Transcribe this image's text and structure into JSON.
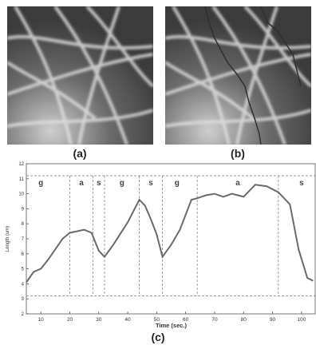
{
  "figure": {
    "label_a": "(a)",
    "label_b": "(b)",
    "label_c": "(c)"
  },
  "colors": {
    "background_image": "#4a4a4a",
    "filament": "#d8d8d8",
    "tracked_line": "#3a3a3a",
    "plot_line": "#6a6a6a",
    "dashed": "#888888"
  },
  "chart_data": {
    "type": "line",
    "title": "",
    "xlabel": "Time (sec.)",
    "ylabel": "Length (um)",
    "xlim": [
      5,
      105
    ],
    "ylim": [
      2,
      12
    ],
    "xticks": [
      10,
      20,
      30,
      40,
      50,
      60,
      70,
      80,
      90,
      100
    ],
    "yticks": [
      2,
      3,
      4,
      5,
      6,
      7,
      8,
      9,
      10,
      11,
      12
    ],
    "grid": false,
    "legend": "none",
    "series": [
      {
        "values": [
          [
            5,
            4.1
          ],
          [
            7.5,
            4.8
          ],
          [
            10,
            5.0
          ],
          [
            12.5,
            5.6
          ],
          [
            15,
            6.3
          ],
          [
            17.5,
            7.0
          ],
          [
            20,
            7.4
          ],
          [
            22.5,
            7.5
          ],
          [
            25,
            7.6
          ],
          [
            27.5,
            7.4
          ],
          [
            30,
            6.2
          ],
          [
            32,
            5.8
          ],
          [
            35,
            6.6
          ],
          [
            40,
            8.1
          ],
          [
            44,
            9.6
          ],
          [
            46,
            9.2
          ],
          [
            48,
            8.3
          ],
          [
            50,
            7.3
          ],
          [
            52,
            5.8
          ],
          [
            55,
            6.6
          ],
          [
            58,
            7.6
          ],
          [
            62,
            9.6
          ],
          [
            64,
            9.7
          ],
          [
            67,
            9.9
          ],
          [
            70,
            10.0
          ],
          [
            73,
            9.8
          ],
          [
            76,
            10.0
          ],
          [
            80,
            9.8
          ],
          [
            84,
            10.6
          ],
          [
            88,
            10.5
          ],
          [
            92,
            10.1
          ],
          [
            96,
            9.3
          ],
          [
            99,
            6.3
          ],
          [
            102,
            4.4
          ],
          [
            104,
            4.2
          ]
        ]
      }
    ],
    "phase_labels": [
      {
        "text": "g",
        "x": 10
      },
      {
        "text": "a",
        "x": 24
      },
      {
        "text": "s",
        "x": 30
      },
      {
        "text": "g",
        "x": 38
      },
      {
        "text": "s",
        "x": 48
      },
      {
        "text": "g",
        "x": 57
      },
      {
        "text": "a",
        "x": 78
      },
      {
        "text": "s",
        "x": 100
      }
    ],
    "phase_boundaries": [
      20,
      28,
      32,
      44,
      52,
      64,
      92
    ],
    "hlines": [
      3.2,
      11.2
    ]
  }
}
